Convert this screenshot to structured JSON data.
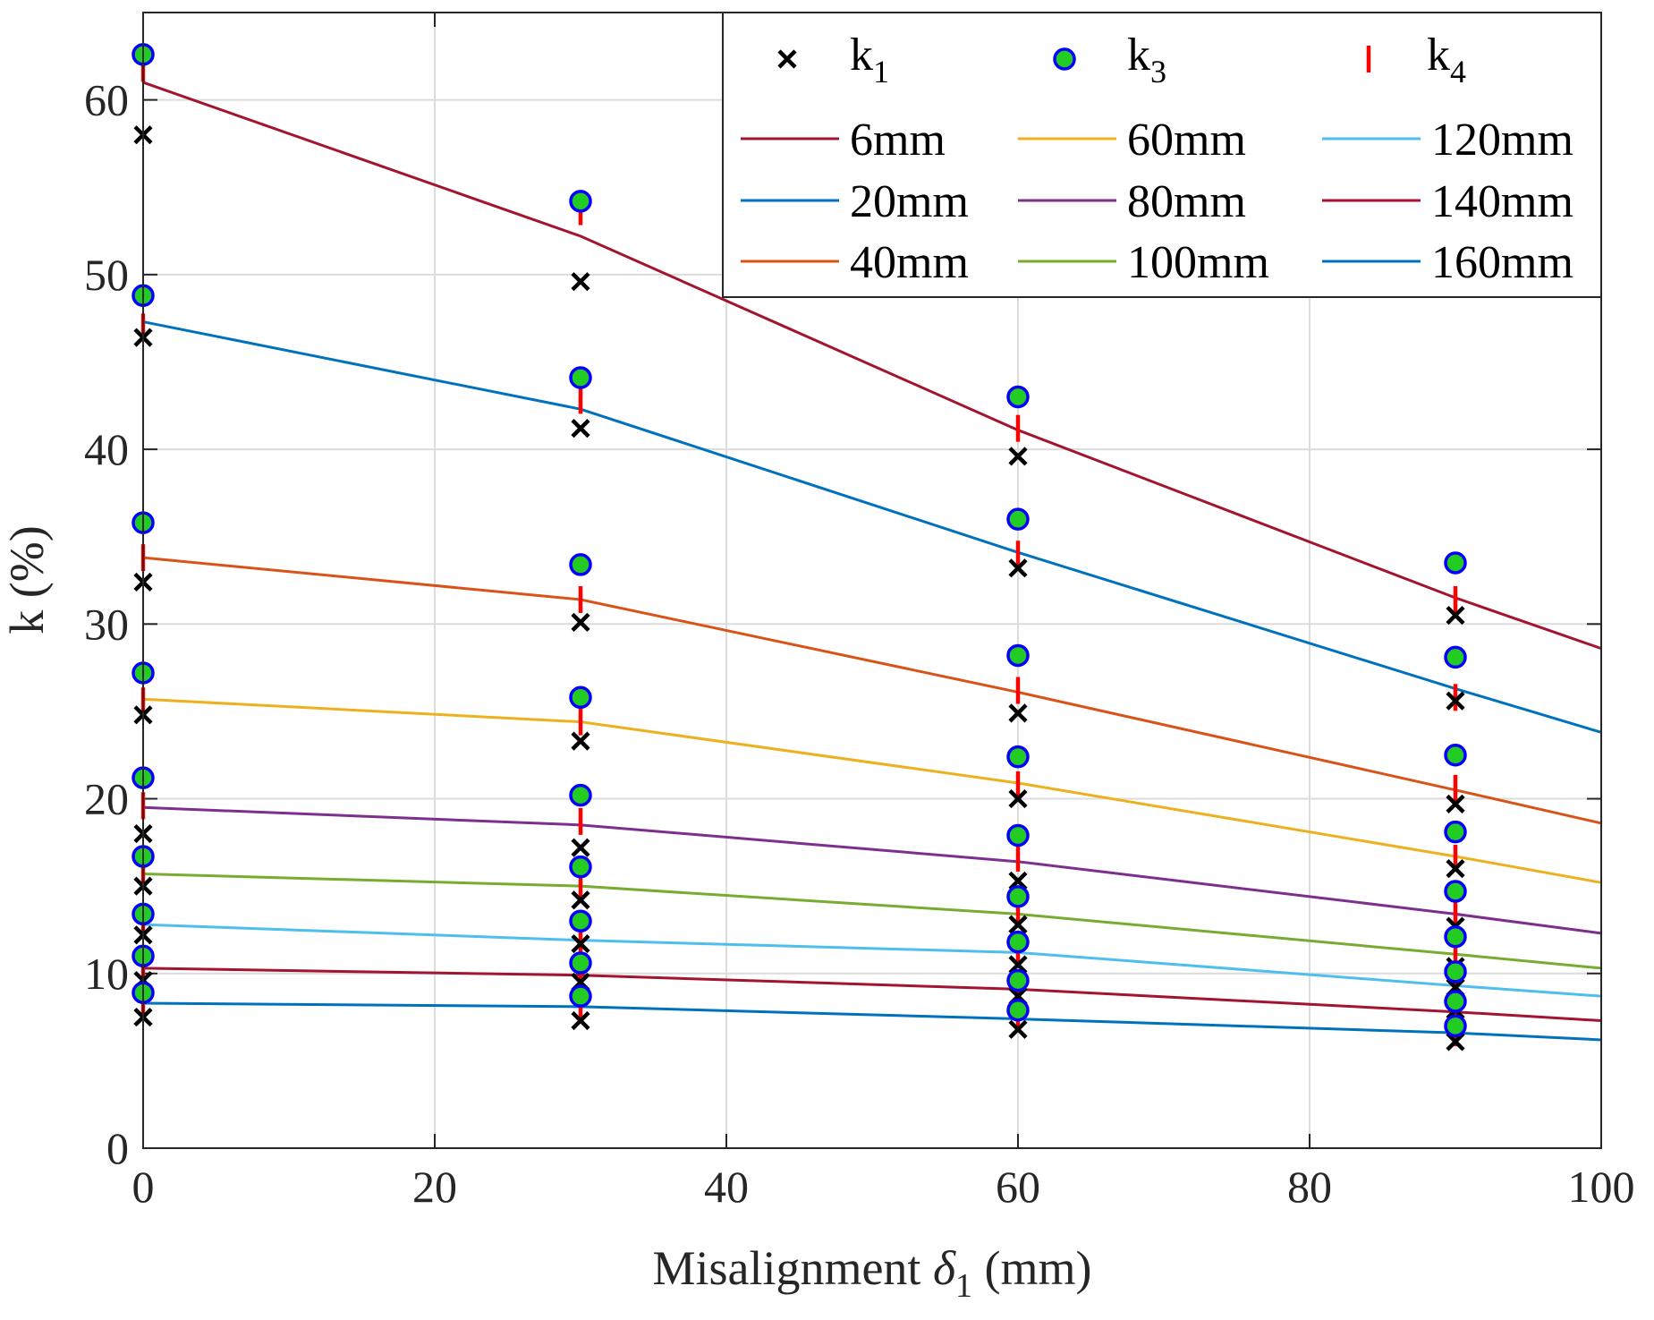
{
  "chart_data": {
    "type": "line",
    "xlabel_prefix": "Misalignment ",
    "xlabel_symbol": "δ",
    "xlabel_sub": "1",
    "xlabel_suffix": " (mm)",
    "ylabel": "k (%)",
    "xlim": [
      0,
      100
    ],
    "ylim": [
      0,
      65
    ],
    "xticks": [
      "0",
      "20",
      "40",
      "60",
      "80",
      "100"
    ],
    "yticks": [
      "0",
      "10",
      "20",
      "30",
      "40",
      "50",
      "60"
    ],
    "grid": true,
    "legend_position": "top-right",
    "marker_legend": [
      {
        "label": "k",
        "sub": "1",
        "marker": "x",
        "color": "#000000"
      },
      {
        "label": "k",
        "sub": "3",
        "marker": "circle",
        "color": "#00cc00",
        "edge": "#0000ff"
      },
      {
        "label": "k",
        "sub": "4",
        "marker": "vline",
        "color": "#ff0000"
      }
    ],
    "fit_x": [
      0,
      30,
      60,
      90,
      100
    ],
    "series": [
      {
        "name": "6mm",
        "color": "#A2142F",
        "fit": [
          61.0,
          52.2,
          41.1,
          31.5,
          28.6
        ],
        "k1": [
          58.0,
          49.6,
          39.6,
          30.5
        ],
        "k3": [
          62.6,
          54.2,
          43.0,
          33.5
        ],
        "k4": [
          61.8,
          53.6,
          41.2,
          31.4
        ]
      },
      {
        "name": "20mm",
        "color": "#0072BD",
        "fit": [
          47.3,
          42.3,
          34.1,
          26.3,
          23.8
        ],
        "k1": [
          46.4,
          41.2,
          33.2,
          25.6
        ],
        "k3": [
          48.8,
          44.1,
          36.0,
          28.1
        ],
        "k4": [
          47.0,
          42.8,
          34.0,
          25.8
        ]
      },
      {
        "name": "40mm",
        "color": "#D95319",
        "fit": [
          33.8,
          31.4,
          26.1,
          20.5,
          18.6
        ],
        "k1": [
          32.4,
          30.1,
          24.9,
          19.7
        ],
        "k3": [
          35.8,
          33.4,
          28.2,
          22.5
        ],
        "k4": [
          33.8,
          31.4,
          26.2,
          20.6
        ]
      },
      {
        "name": "60mm",
        "color": "#EDB120",
        "fit": [
          25.7,
          24.4,
          20.9,
          16.7,
          15.2
        ],
        "k1": [
          24.8,
          23.3,
          20.0,
          16.0
        ],
        "k3": [
          27.2,
          25.8,
          22.4,
          18.1
        ],
        "k4": [
          25.6,
          24.4,
          20.8,
          16.6
        ]
      },
      {
        "name": "80mm",
        "color": "#7E2F8E",
        "fit": [
          19.5,
          18.5,
          16.4,
          13.4,
          12.3
        ],
        "k1": [
          18.0,
          17.2,
          15.3,
          12.7
        ],
        "k3": [
          21.2,
          20.2,
          17.9,
          14.7
        ],
        "k4": [
          19.6,
          18.7,
          16.6,
          13.5
        ]
      },
      {
        "name": "100mm",
        "color": "#77AC30",
        "fit": [
          15.7,
          15.0,
          13.4,
          11.1,
          10.3
        ],
        "k1": [
          15.0,
          14.2,
          12.8,
          10.4
        ],
        "k3": [
          16.7,
          16.1,
          14.4,
          12.1
        ],
        "k4": [
          15.8,
          15.1,
          13.4,
          11.0
        ]
      },
      {
        "name": "120mm",
        "color": "#4DBEEE",
        "fit": [
          12.8,
          11.9,
          11.2,
          9.3,
          8.7
        ],
        "k1": [
          12.2,
          11.7,
          10.5,
          9.2
        ],
        "k3": [
          13.4,
          13.0,
          11.8,
          10.1
        ],
        "k4": [
          12.8,
          12.0,
          11.1,
          9.4
        ]
      },
      {
        "name": "140mm",
        "color": "#A2142F",
        "fit": [
          10.3,
          9.9,
          9.1,
          7.8,
          7.3
        ],
        "k1": [
          9.6,
          9.5,
          8.7,
          7.9
        ],
        "k3": [
          11.0,
          10.6,
          9.6,
          8.4
        ],
        "k4": [
          10.3,
          10.0,
          9.1,
          7.9
        ]
      },
      {
        "name": "160mm",
        "color": "#0072BD",
        "fit": [
          8.3,
          8.1,
          7.4,
          6.6,
          6.2
        ],
        "k1": [
          7.5,
          7.3,
          6.8,
          6.1
        ],
        "k3": [
          8.9,
          8.7,
          7.9,
          7.0
        ],
        "k4": [
          8.2,
          8.0,
          7.4,
          6.6
        ]
      }
    ]
  }
}
